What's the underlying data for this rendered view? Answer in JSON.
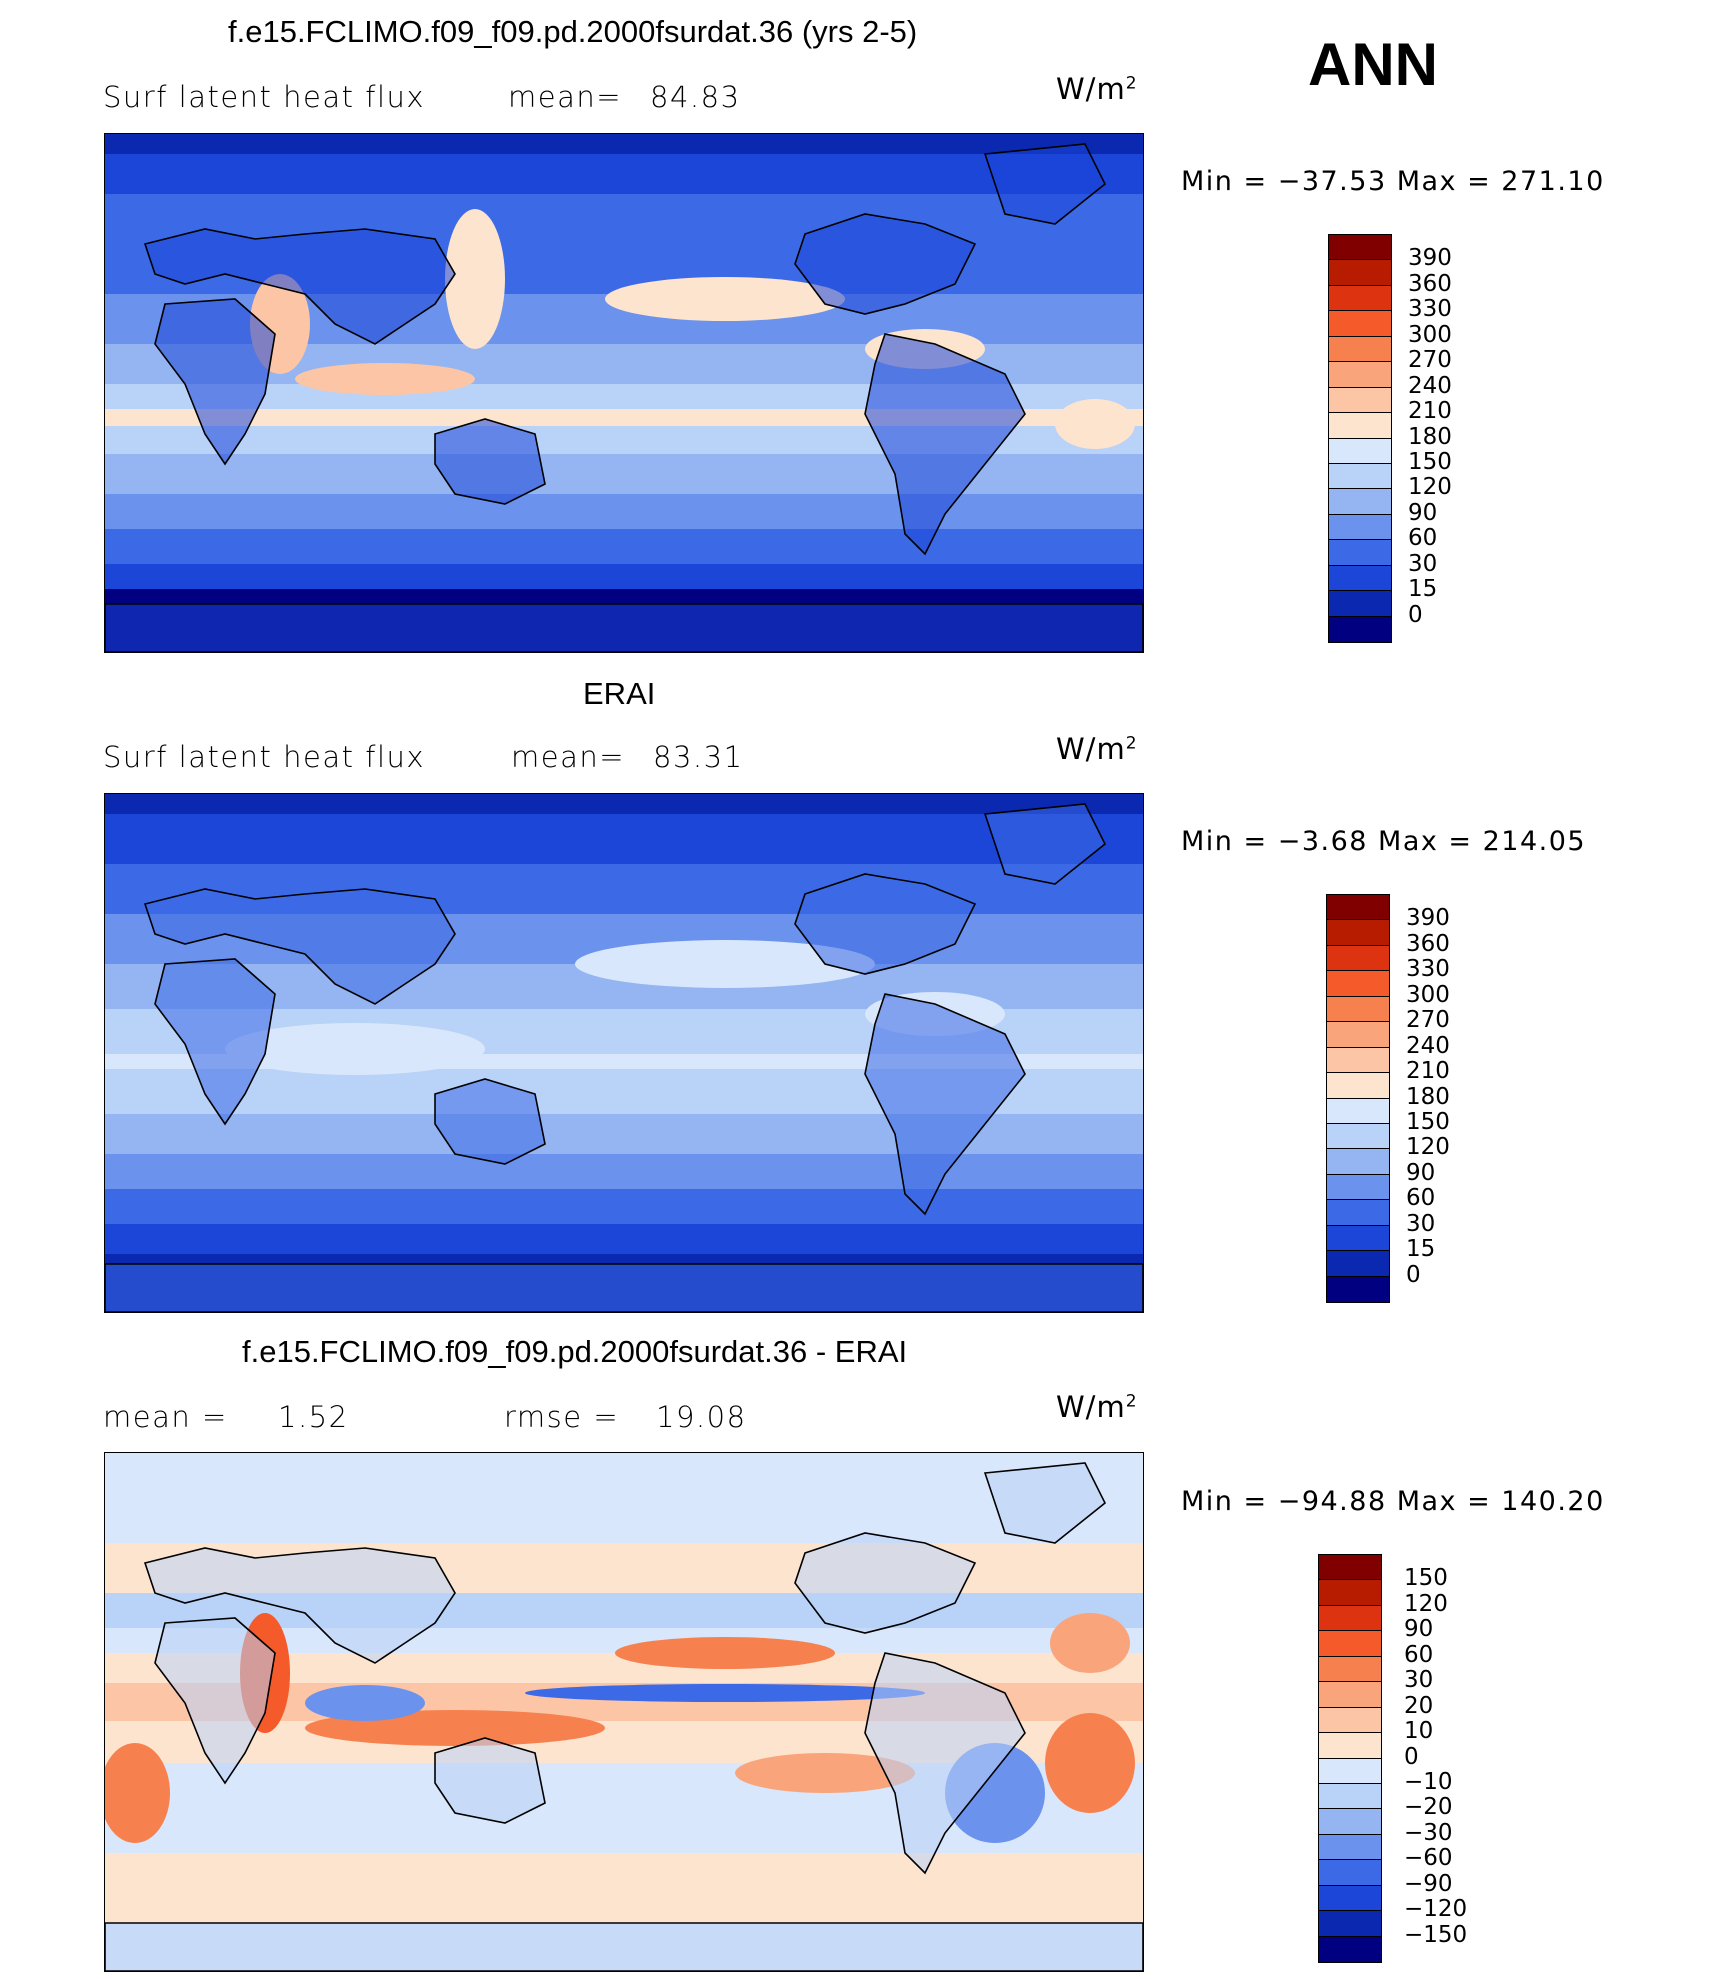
{
  "header": {
    "season": "ANN"
  },
  "panels": [
    {
      "title": "f.e15.FCLIMO.f09_f09.pd.2000fsurdat.36 (yrs 2-5)",
      "variable": "Surf  latent  heat  flux",
      "stat1_label": "mean=",
      "stat1_value": "84.83",
      "stat2_label": "",
      "stat2_value": "",
      "units_base": "W/m",
      "units_exp": "2",
      "min_label": "Min  =  −37.53  Max  =  271.10",
      "scheme": "model",
      "colorbar": {
        "labels": [
          "390",
          "360",
          "330",
          "300",
          "270",
          "240",
          "210",
          "180",
          "150",
          "120",
          "90",
          "60",
          "30",
          "15",
          "0"
        ],
        "colors": [
          "#800000",
          "#b81c00",
          "#dd3311",
          "#f45a2a",
          "#f7804f",
          "#f9a47b",
          "#fbc5a6",
          "#fde4cf",
          "#d8e7fb",
          "#b9d2f8",
          "#94b5f2",
          "#6b92ec",
          "#3c6ae6",
          "#1c46d8",
          "#0a28b0",
          "#000080"
        ]
      }
    },
    {
      "title": "ERAI",
      "variable": "Surf  latent  heat  flux",
      "stat1_label": "mean=",
      "stat1_value": "83.31",
      "stat2_label": "",
      "stat2_value": "",
      "units_base": "W/m",
      "units_exp": "2",
      "min_label": "Min  =    −3.68  Max  =  214.05",
      "scheme": "obs",
      "colorbar": {
        "labels": [
          "390",
          "360",
          "330",
          "300",
          "270",
          "240",
          "210",
          "180",
          "150",
          "120",
          "90",
          "60",
          "30",
          "15",
          "0"
        ],
        "colors": [
          "#800000",
          "#b81c00",
          "#dd3311",
          "#f45a2a",
          "#f7804f",
          "#f9a47b",
          "#fbc5a6",
          "#fde4cf",
          "#d8e7fb",
          "#b9d2f8",
          "#94b5f2",
          "#6b92ec",
          "#3c6ae6",
          "#1c46d8",
          "#0a28b0",
          "#000080"
        ]
      }
    },
    {
      "title": "f.e15.FCLIMO.f09_f09.pd.2000fsurdat.36 - ERAI",
      "variable": "",
      "stat1_label": "mean  =",
      "stat1_value": "1.52",
      "stat2_label": "rmse  =",
      "stat2_value": "19.08",
      "units_base": "W/m",
      "units_exp": "2",
      "min_label": "Min  =  −94.88  Max  =  140.20",
      "scheme": "diff",
      "colorbar": {
        "labels": [
          "150",
          "120",
          "90",
          "60",
          "30",
          "20",
          "10",
          "0",
          "−10",
          "−20",
          "−30",
          "−60",
          "−90",
          "−120",
          "−150"
        ],
        "colors": [
          "#800000",
          "#b81c00",
          "#dd3311",
          "#f45a2a",
          "#f7804f",
          "#f9a47b",
          "#fbc5a6",
          "#fde4cf",
          "#d8e7fb",
          "#b9d2f8",
          "#94b5f2",
          "#6b92ec",
          "#3c6ae6",
          "#1c46d8",
          "#0a28b0",
          "#000080"
        ]
      }
    }
  ],
  "chart_data": [
    {
      "type": "heatmap",
      "title": "f.e15.FCLIMO.f09_f09.pd.2000fsurdat.36 (yrs 2-5)",
      "variable": "Surf latent heat flux",
      "units": "W/m2",
      "mean": 84.83,
      "min": -37.53,
      "max": 271.1,
      "contour_levels": [
        0,
        15,
        30,
        60,
        90,
        120,
        150,
        180,
        210,
        240,
        270,
        300,
        330,
        360,
        390
      ]
    },
    {
      "type": "heatmap",
      "title": "ERAI",
      "variable": "Surf latent heat flux",
      "units": "W/m2",
      "mean": 83.31,
      "min": -3.68,
      "max": 214.05,
      "contour_levels": [
        0,
        15,
        30,
        60,
        90,
        120,
        150,
        180,
        210,
        240,
        270,
        300,
        330,
        360,
        390
      ]
    },
    {
      "type": "heatmap",
      "title": "f.e15.FCLIMO.f09_f09.pd.2000fsurdat.36 - ERAI",
      "units": "W/m2",
      "mean": 1.52,
      "rmse": 19.08,
      "min": -94.88,
      "max": 140.2,
      "contour_levels": [
        -150,
        -120,
        -90,
        -60,
        -30,
        -20,
        -10,
        0,
        10,
        20,
        30,
        60,
        90,
        120,
        150
      ]
    }
  ]
}
